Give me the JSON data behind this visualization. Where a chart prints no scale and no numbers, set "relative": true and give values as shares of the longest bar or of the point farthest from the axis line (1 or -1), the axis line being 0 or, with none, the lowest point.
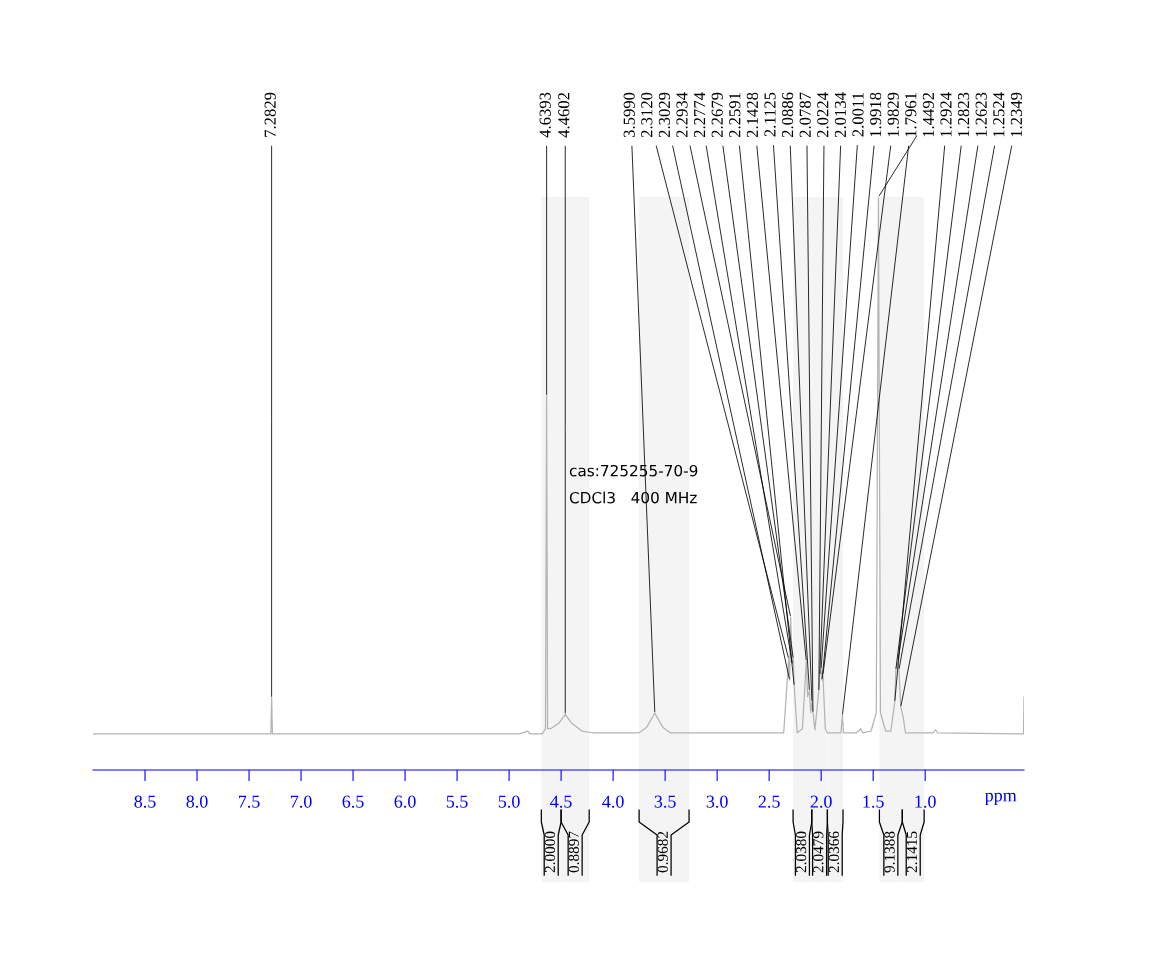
{
  "chart_data": {
    "type": "line",
    "relative": true,
    "xlabel": "ppm",
    "xlim": [
      9.0,
      0.05
    ],
    "xticks": [
      8.5,
      {
        "value": 8.0,
        "label": "8.0"
      },
      7.5,
      {
        "value": 7.0,
        "label": "7.0"
      },
      6.5,
      {
        "value": 6.0,
        "label": "6.0"
      },
      5.5,
      {
        "value": 5.0,
        "label": "5.0"
      },
      4.5,
      {
        "value": 4.0,
        "label": "4.0"
      },
      3.5,
      {
        "value": 3.0,
        "label": "3.0"
      },
      2.5,
      {
        "value": 2.0,
        "label": "2.0"
      },
      1.5,
      {
        "value": 1.0,
        "label": "1.0"
      }
    ],
    "grid": false,
    "legend": false,
    "marker": "none",
    "line_style": "solid",
    "series": [
      {
        "color": "#b4b4b4",
        "x": [
          9.0,
          7.32,
          7.29,
          7.2829,
          7.275,
          4.9,
          4.82,
          4.8,
          4.68,
          4.65,
          4.6393,
          4.63,
          4.6,
          4.52,
          4.4602,
          4.4,
          4.3,
          4.2,
          3.75,
          3.68,
          3.599,
          3.52,
          3.45,
          2.4,
          2.36,
          2.312,
          2.3029,
          2.2934,
          2.2774,
          2.2679,
          2.2591,
          2.23,
          2.18,
          2.1428,
          2.13,
          2.1125,
          2.1,
          2.0886,
          2.0787,
          2.06,
          2.0224,
          2.0134,
          2.0011,
          1.9918,
          1.9829,
          1.96,
          1.94,
          1.81,
          1.7961,
          1.785,
          1.66,
          1.62,
          1.6,
          1.52,
          1.47,
          1.4492,
          1.43,
          1.38,
          1.33,
          1.2924,
          1.2823,
          1.2623,
          1.2524,
          1.2349,
          1.21,
          1.19,
          0.92,
          0.9,
          0.88,
          0.055,
          0.05
        ],
        "values": [
          0.063,
          0.063,
          0.063,
          0.126,
          0.063,
          0.063,
          0.068,
          0.063,
          0.063,
          0.072,
          0.653,
          0.072,
          0.072,
          0.082,
          0.097,
          0.082,
          0.068,
          0.065,
          0.065,
          0.074,
          0.099,
          0.074,
          0.065,
          0.065,
          0.065,
          0.194,
          0.157,
          0.267,
          0.185,
          0.194,
          0.147,
          0.065,
          0.072,
          0.19,
          0.128,
          0.138,
          0.1,
          0.119,
          0.1,
          0.07,
          0.138,
          0.166,
          0.176,
          0.157,
          0.166,
          0.072,
          0.065,
          0.065,
          0.095,
          0.065,
          0.065,
          0.072,
          0.065,
          0.068,
          0.1,
          1.0,
          0.1,
          0.068,
          0.068,
          0.119,
          0.175,
          0.19,
          0.175,
          0.11,
          0.091,
          0.065,
          0.065,
          0.07,
          0.065,
          0.063,
          0.127
        ]
      }
    ],
    "bands": [
      {
        "axis": "x",
        "from": 4.69,
        "to": 4.5,
        "label": "2.0000"
      },
      {
        "axis": "x",
        "from": 4.5,
        "to": 4.23,
        "label": "0.8897"
      },
      {
        "axis": "x",
        "from": 3.75,
        "to": 3.27,
        "label": "0.9682"
      },
      {
        "axis": "x",
        "from": 2.27,
        "to": 2.09,
        "label": "2.0380"
      },
      {
        "axis": "x",
        "from": 2.09,
        "to": 1.94,
        "label": "2.0479"
      },
      {
        "axis": "x",
        "from": 1.94,
        "to": 1.79,
        "label": "2.0366"
      },
      {
        "axis": "x",
        "from": 1.44,
        "to": 1.22,
        "label": "9.1388"
      },
      {
        "axis": "x",
        "from": 1.22,
        "to": 1.01,
        "label": "2.1415"
      }
    ],
    "annotations": [
      {
        "text": "7.2829",
        "x": 7.2829,
        "y": 0.126
      },
      {
        "text": "4.6393",
        "x": 4.6393,
        "y": 0.653
      },
      {
        "text": "4.4602",
        "x": 4.4602,
        "y": 0.097
      },
      {
        "text": "3.5990",
        "x": 3.599,
        "y": 0.099
      },
      {
        "text": "2.3120",
        "x": 2.312,
        "y": 0.194
      },
      {
        "text": "2.3029",
        "x": 2.3029,
        "y": 0.157
      },
      {
        "text": "2.2934",
        "x": 2.2934,
        "y": 0.267
      },
      {
        "text": "2.2774",
        "x": 2.2774,
        "y": 0.185
      },
      {
        "text": "2.2679",
        "x": 2.2679,
        "y": 0.194
      },
      {
        "text": "2.2591",
        "x": 2.2591,
        "y": 0.147
      },
      {
        "text": "2.1428",
        "x": 2.1428,
        "y": 0.19
      },
      {
        "text": "2.1125",
        "x": 2.1125,
        "y": 0.138
      },
      {
        "text": "2.0886",
        "x": 2.0886,
        "y": 0.119
      },
      {
        "text": "2.0787",
        "x": 2.0787,
        "y": 0.1
      },
      {
        "text": "2.0224",
        "x": 2.0224,
        "y": 0.138
      },
      {
        "text": "2.0134",
        "x": 2.0134,
        "y": 0.166
      },
      {
        "text": "2.0011",
        "x": 2.0011,
        "y": 0.176
      },
      {
        "text": "1.9918",
        "x": 1.9918,
        "y": 0.157
      },
      {
        "text": "1.9829",
        "x": 1.9829,
        "y": 0.166
      },
      {
        "text": "1.7961",
        "x": 1.7961,
        "y": 0.095
      },
      {
        "text": "1.4492",
        "x": 1.4492,
        "y": 1.0
      },
      {
        "text": "1.2924",
        "x": 1.2924,
        "y": 0.119
      },
      {
        "text": "1.2823",
        "x": 1.2823,
        "y": 0.175
      },
      {
        "text": "1.2623",
        "x": 1.2623,
        "y": 0.19
      },
      {
        "text": "1.2524",
        "x": 1.2524,
        "y": 0.175
      },
      {
        "text": "1.2349",
        "x": 1.2349,
        "y": 0.11
      },
      "cas:725255-70-9",
      "CDCl3   400 MHz"
    ]
  }
}
